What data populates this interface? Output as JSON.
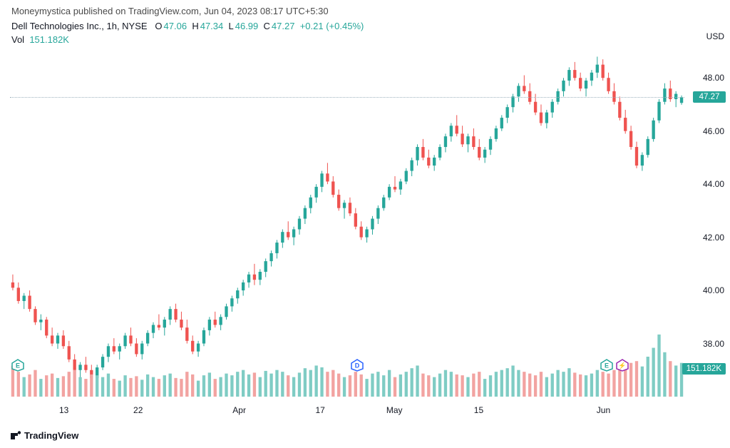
{
  "header": {
    "published_by": "Moneymystica",
    "published_text": "published on",
    "site": "TradingView.com",
    "timestamp": "Jun 04, 2023 08:17 UTC+5:30"
  },
  "ticker": {
    "name": "Dell Technologies Inc.",
    "interval": "1h",
    "exchange": "NYSE",
    "O_label": "O",
    "O": "47.06",
    "H_label": "H",
    "H": "47.34",
    "L_label": "L",
    "L": "46.99",
    "C_label": "C",
    "C": "47.27",
    "change": "+0.21",
    "pct": "(+0.45%)"
  },
  "volume": {
    "label": "Vol",
    "value": "151.182K"
  },
  "currency": "USD",
  "y_axis": {
    "min": 36,
    "max": 49,
    "ticks": [
      38,
      40,
      42,
      44,
      46,
      48
    ]
  },
  "price_last": 47.27,
  "price_tag": "47.27",
  "vol_tag": "151.182K",
  "x_ticks": [
    {
      "pos": 0.08,
      "label": "13"
    },
    {
      "pos": 0.19,
      "label": "22"
    },
    {
      "pos": 0.34,
      "label": "Apr"
    },
    {
      "pos": 0.46,
      "label": "17"
    },
    {
      "pos": 0.57,
      "label": "May"
    },
    {
      "pos": 0.695,
      "label": "15"
    },
    {
      "pos": 0.88,
      "label": "Jun"
    }
  ],
  "markers": [
    {
      "pos": 0.012,
      "y": 0.91,
      "letter": "E",
      "fill": "#ffffff",
      "stroke": "#26a69a",
      "text_color": "#26a69a"
    },
    {
      "pos": 0.515,
      "y": 0.91,
      "letter": "D",
      "fill": "#ffffff",
      "stroke": "#2962ff",
      "text_color": "#2962ff"
    },
    {
      "pos": 0.885,
      "y": 0.91,
      "letter": "E",
      "fill": "#ffffff",
      "stroke": "#26a69a",
      "text_color": "#26a69a"
    },
    {
      "pos": 0.908,
      "y": 0.91,
      "letter": "⚡",
      "fill": "#ffffff",
      "stroke": "#9c27b0",
      "text_color": "#9c27b0"
    }
  ],
  "colors": {
    "up": "#26a69a",
    "down": "#ef5350",
    "vol_up": "#7fccc4",
    "vol_down": "#f2a3a1",
    "text": "#131722",
    "muted": "#4a4a4a",
    "line": "#9db2bd",
    "bg": "#ffffff"
  },
  "footer_brand": "TradingView",
  "candles": [
    {
      "o": 40.3,
      "h": 40.6,
      "l": 40.0,
      "c": 40.1,
      "v": 0.35
    },
    {
      "o": 40.1,
      "h": 40.3,
      "l": 39.5,
      "c": 39.6,
      "v": 0.28
    },
    {
      "o": 39.6,
      "h": 39.9,
      "l": 39.3,
      "c": 39.8,
      "v": 0.22
    },
    {
      "o": 39.8,
      "h": 40.0,
      "l": 39.2,
      "c": 39.3,
      "v": 0.25
    },
    {
      "o": 39.3,
      "h": 39.4,
      "l": 38.7,
      "c": 38.8,
      "v": 0.3
    },
    {
      "o": 38.8,
      "h": 39.1,
      "l": 38.5,
      "c": 38.9,
      "v": 0.2
    },
    {
      "o": 38.9,
      "h": 39.0,
      "l": 38.2,
      "c": 38.3,
      "v": 0.24
    },
    {
      "o": 38.3,
      "h": 38.6,
      "l": 37.9,
      "c": 38.0,
      "v": 0.26
    },
    {
      "o": 38.0,
      "h": 38.4,
      "l": 37.8,
      "c": 38.3,
      "v": 0.21
    },
    {
      "o": 38.3,
      "h": 38.5,
      "l": 37.8,
      "c": 37.9,
      "v": 0.23
    },
    {
      "o": 37.9,
      "h": 38.1,
      "l": 37.3,
      "c": 37.4,
      "v": 0.28
    },
    {
      "o": 37.4,
      "h": 37.6,
      "l": 36.9,
      "c": 37.0,
      "v": 0.3
    },
    {
      "o": 37.0,
      "h": 37.3,
      "l": 36.7,
      "c": 37.2,
      "v": 0.22
    },
    {
      "o": 37.2,
      "h": 37.5,
      "l": 36.9,
      "c": 37.0,
      "v": 0.2
    },
    {
      "o": 37.0,
      "h": 37.2,
      "l": 36.6,
      "c": 36.7,
      "v": 0.25
    },
    {
      "o": 36.7,
      "h": 37.2,
      "l": 36.5,
      "c": 37.1,
      "v": 0.24
    },
    {
      "o": 37.1,
      "h": 37.6,
      "l": 37.0,
      "c": 37.5,
      "v": 0.22
    },
    {
      "o": 37.5,
      "h": 38.0,
      "l": 37.3,
      "c": 37.9,
      "v": 0.26
    },
    {
      "o": 37.9,
      "h": 38.2,
      "l": 37.6,
      "c": 37.7,
      "v": 0.2
    },
    {
      "o": 37.7,
      "h": 38.0,
      "l": 37.4,
      "c": 37.9,
      "v": 0.18
    },
    {
      "o": 37.9,
      "h": 38.4,
      "l": 37.8,
      "c": 38.3,
      "v": 0.24
    },
    {
      "o": 38.3,
      "h": 38.6,
      "l": 37.9,
      "c": 38.0,
      "v": 0.21
    },
    {
      "o": 38.0,
      "h": 38.2,
      "l": 37.5,
      "c": 37.6,
      "v": 0.23
    },
    {
      "o": 37.6,
      "h": 38.1,
      "l": 37.4,
      "c": 38.0,
      "v": 0.19
    },
    {
      "o": 38.0,
      "h": 38.5,
      "l": 37.9,
      "c": 38.4,
      "v": 0.25
    },
    {
      "o": 38.4,
      "h": 38.8,
      "l": 38.2,
      "c": 38.7,
      "v": 0.22
    },
    {
      "o": 38.7,
      "h": 39.1,
      "l": 38.5,
      "c": 38.6,
      "v": 0.2
    },
    {
      "o": 38.6,
      "h": 39.0,
      "l": 38.3,
      "c": 38.9,
      "v": 0.24
    },
    {
      "o": 38.9,
      "h": 39.4,
      "l": 38.7,
      "c": 39.3,
      "v": 0.26
    },
    {
      "o": 39.3,
      "h": 39.5,
      "l": 38.8,
      "c": 38.9,
      "v": 0.21
    },
    {
      "o": 38.9,
      "h": 39.2,
      "l": 38.5,
      "c": 38.6,
      "v": 0.2
    },
    {
      "o": 38.6,
      "h": 38.9,
      "l": 38.0,
      "c": 38.1,
      "v": 0.28
    },
    {
      "o": 38.1,
      "h": 38.3,
      "l": 37.6,
      "c": 37.7,
      "v": 0.25
    },
    {
      "o": 37.7,
      "h": 38.1,
      "l": 37.5,
      "c": 38.0,
      "v": 0.18
    },
    {
      "o": 38.0,
      "h": 38.6,
      "l": 37.9,
      "c": 38.5,
      "v": 0.24
    },
    {
      "o": 38.5,
      "h": 39.0,
      "l": 38.3,
      "c": 38.9,
      "v": 0.27
    },
    {
      "o": 38.9,
      "h": 39.2,
      "l": 38.6,
      "c": 38.7,
      "v": 0.2
    },
    {
      "o": 38.7,
      "h": 39.1,
      "l": 38.5,
      "c": 39.0,
      "v": 0.22
    },
    {
      "o": 39.0,
      "h": 39.5,
      "l": 38.9,
      "c": 39.4,
      "v": 0.26
    },
    {
      "o": 39.4,
      "h": 39.8,
      "l": 39.2,
      "c": 39.7,
      "v": 0.24
    },
    {
      "o": 39.7,
      "h": 40.1,
      "l": 39.5,
      "c": 40.0,
      "v": 0.28
    },
    {
      "o": 40.0,
      "h": 40.4,
      "l": 39.8,
      "c": 40.3,
      "v": 0.3
    },
    {
      "o": 40.3,
      "h": 40.7,
      "l": 40.1,
      "c": 40.6,
      "v": 0.25
    },
    {
      "o": 40.6,
      "h": 41.0,
      "l": 40.2,
      "c": 40.4,
      "v": 0.27
    },
    {
      "o": 40.4,
      "h": 40.8,
      "l": 40.2,
      "c": 40.7,
      "v": 0.22
    },
    {
      "o": 40.7,
      "h": 41.2,
      "l": 40.5,
      "c": 41.1,
      "v": 0.29
    },
    {
      "o": 41.1,
      "h": 41.5,
      "l": 40.9,
      "c": 41.4,
      "v": 0.26
    },
    {
      "o": 41.4,
      "h": 41.9,
      "l": 41.2,
      "c": 41.8,
      "v": 0.3
    },
    {
      "o": 41.8,
      "h": 42.3,
      "l": 41.6,
      "c": 42.2,
      "v": 0.28
    },
    {
      "o": 42.2,
      "h": 42.6,
      "l": 41.9,
      "c": 42.0,
      "v": 0.24
    },
    {
      "o": 42.0,
      "h": 42.4,
      "l": 41.7,
      "c": 42.3,
      "v": 0.22
    },
    {
      "o": 42.3,
      "h": 42.8,
      "l": 42.1,
      "c": 42.7,
      "v": 0.27
    },
    {
      "o": 42.7,
      "h": 43.2,
      "l": 42.5,
      "c": 43.1,
      "v": 0.32
    },
    {
      "o": 43.1,
      "h": 43.6,
      "l": 42.9,
      "c": 43.5,
      "v": 0.3
    },
    {
      "o": 43.5,
      "h": 44.0,
      "l": 43.3,
      "c": 43.9,
      "v": 0.35
    },
    {
      "o": 43.9,
      "h": 44.5,
      "l": 43.7,
      "c": 44.4,
      "v": 0.33
    },
    {
      "o": 44.4,
      "h": 44.8,
      "l": 44.0,
      "c": 44.1,
      "v": 0.28
    },
    {
      "o": 44.1,
      "h": 44.3,
      "l": 43.5,
      "c": 43.6,
      "v": 0.3
    },
    {
      "o": 43.6,
      "h": 43.8,
      "l": 43.0,
      "c": 43.1,
      "v": 0.26
    },
    {
      "o": 43.1,
      "h": 43.4,
      "l": 42.7,
      "c": 43.3,
      "v": 0.22
    },
    {
      "o": 43.3,
      "h": 43.5,
      "l": 42.8,
      "c": 42.9,
      "v": 0.24
    },
    {
      "o": 42.9,
      "h": 43.1,
      "l": 42.3,
      "c": 42.4,
      "v": 0.28
    },
    {
      "o": 42.4,
      "h": 42.6,
      "l": 41.9,
      "c": 42.0,
      "v": 0.25
    },
    {
      "o": 42.0,
      "h": 42.4,
      "l": 41.8,
      "c": 42.3,
      "v": 0.2
    },
    {
      "o": 42.3,
      "h": 42.8,
      "l": 42.1,
      "c": 42.7,
      "v": 0.26
    },
    {
      "o": 42.7,
      "h": 43.2,
      "l": 42.5,
      "c": 43.1,
      "v": 0.28
    },
    {
      "o": 43.1,
      "h": 43.6,
      "l": 43.0,
      "c": 43.5,
      "v": 0.24
    },
    {
      "o": 43.5,
      "h": 44.0,
      "l": 43.4,
      "c": 43.9,
      "v": 0.3
    },
    {
      "o": 43.9,
      "h": 44.3,
      "l": 43.7,
      "c": 43.8,
      "v": 0.22
    },
    {
      "o": 43.8,
      "h": 44.2,
      "l": 43.6,
      "c": 44.1,
      "v": 0.25
    },
    {
      "o": 44.1,
      "h": 44.6,
      "l": 44.0,
      "c": 44.5,
      "v": 0.28
    },
    {
      "o": 44.5,
      "h": 45.0,
      "l": 44.3,
      "c": 44.9,
      "v": 0.32
    },
    {
      "o": 44.9,
      "h": 45.5,
      "l": 44.7,
      "c": 45.4,
      "v": 0.35
    },
    {
      "o": 45.4,
      "h": 45.7,
      "l": 44.9,
      "c": 45.0,
      "v": 0.26
    },
    {
      "o": 45.0,
      "h": 45.3,
      "l": 44.6,
      "c": 44.7,
      "v": 0.24
    },
    {
      "o": 44.7,
      "h": 45.1,
      "l": 44.5,
      "c": 45.0,
      "v": 0.22
    },
    {
      "o": 45.0,
      "h": 45.5,
      "l": 44.9,
      "c": 45.4,
      "v": 0.26
    },
    {
      "o": 45.4,
      "h": 45.9,
      "l": 45.2,
      "c": 45.8,
      "v": 0.3
    },
    {
      "o": 45.8,
      "h": 46.3,
      "l": 45.6,
      "c": 46.2,
      "v": 0.28
    },
    {
      "o": 46.2,
      "h": 46.6,
      "l": 45.8,
      "c": 45.9,
      "v": 0.25
    },
    {
      "o": 45.9,
      "h": 46.2,
      "l": 45.4,
      "c": 45.5,
      "v": 0.24
    },
    {
      "o": 45.5,
      "h": 45.9,
      "l": 45.2,
      "c": 45.8,
      "v": 0.22
    },
    {
      "o": 45.8,
      "h": 46.1,
      "l": 45.3,
      "c": 45.4,
      "v": 0.26
    },
    {
      "o": 45.4,
      "h": 45.7,
      "l": 44.9,
      "c": 45.0,
      "v": 0.28
    },
    {
      "o": 45.0,
      "h": 45.4,
      "l": 44.8,
      "c": 45.3,
      "v": 0.2
    },
    {
      "o": 45.3,
      "h": 45.8,
      "l": 45.1,
      "c": 45.7,
      "v": 0.24
    },
    {
      "o": 45.7,
      "h": 46.2,
      "l": 45.6,
      "c": 46.1,
      "v": 0.28
    },
    {
      "o": 46.1,
      "h": 46.6,
      "l": 46.0,
      "c": 46.5,
      "v": 0.3
    },
    {
      "o": 46.5,
      "h": 47.0,
      "l": 46.3,
      "c": 46.9,
      "v": 0.32
    },
    {
      "o": 46.9,
      "h": 47.4,
      "l": 46.7,
      "c": 47.3,
      "v": 0.35
    },
    {
      "o": 47.3,
      "h": 47.8,
      "l": 47.1,
      "c": 47.7,
      "v": 0.3
    },
    {
      "o": 47.7,
      "h": 48.1,
      "l": 47.4,
      "c": 47.5,
      "v": 0.28
    },
    {
      "o": 47.5,
      "h": 47.8,
      "l": 47.0,
      "c": 47.1,
      "v": 0.26
    },
    {
      "o": 47.1,
      "h": 47.4,
      "l": 46.6,
      "c": 46.7,
      "v": 0.24
    },
    {
      "o": 46.7,
      "h": 47.0,
      "l": 46.2,
      "c": 46.3,
      "v": 0.28
    },
    {
      "o": 46.3,
      "h": 46.8,
      "l": 46.1,
      "c": 46.7,
      "v": 0.22
    },
    {
      "o": 46.7,
      "h": 47.2,
      "l": 46.5,
      "c": 47.1,
      "v": 0.26
    },
    {
      "o": 47.1,
      "h": 47.6,
      "l": 47.0,
      "c": 47.5,
      "v": 0.3
    },
    {
      "o": 47.5,
      "h": 48.0,
      "l": 47.3,
      "c": 47.9,
      "v": 0.28
    },
    {
      "o": 47.9,
      "h": 48.4,
      "l": 47.7,
      "c": 48.3,
      "v": 0.32
    },
    {
      "o": 48.3,
      "h": 48.6,
      "l": 47.9,
      "c": 48.0,
      "v": 0.27
    },
    {
      "o": 48.0,
      "h": 48.2,
      "l": 47.5,
      "c": 47.6,
      "v": 0.25
    },
    {
      "o": 47.6,
      "h": 48.0,
      "l": 47.3,
      "c": 47.9,
      "v": 0.24
    },
    {
      "o": 47.9,
      "h": 48.3,
      "l": 47.7,
      "c": 48.2,
      "v": 0.26
    },
    {
      "o": 48.2,
      "h": 48.8,
      "l": 48.0,
      "c": 48.5,
      "v": 0.3
    },
    {
      "o": 48.5,
      "h": 48.7,
      "l": 47.9,
      "c": 48.0,
      "v": 0.28
    },
    {
      "o": 48.0,
      "h": 48.2,
      "l": 47.4,
      "c": 47.5,
      "v": 0.26
    },
    {
      "o": 47.5,
      "h": 47.8,
      "l": 47.0,
      "c": 47.1,
      "v": 0.3
    },
    {
      "o": 47.1,
      "h": 47.3,
      "l": 46.4,
      "c": 46.5,
      "v": 0.35
    },
    {
      "o": 46.5,
      "h": 46.8,
      "l": 45.9,
      "c": 46.0,
      "v": 0.32
    },
    {
      "o": 46.0,
      "h": 46.2,
      "l": 45.3,
      "c": 45.4,
      "v": 0.38
    },
    {
      "o": 45.4,
      "h": 45.6,
      "l": 44.6,
      "c": 44.7,
      "v": 0.4
    },
    {
      "o": 44.7,
      "h": 45.2,
      "l": 44.5,
      "c": 45.1,
      "v": 0.34
    },
    {
      "o": 45.1,
      "h": 45.8,
      "l": 45.0,
      "c": 45.7,
      "v": 0.45
    },
    {
      "o": 45.7,
      "h": 46.5,
      "l": 45.6,
      "c": 46.4,
      "v": 0.55
    },
    {
      "o": 46.4,
      "h": 47.2,
      "l": 46.3,
      "c": 47.1,
      "v": 0.7
    },
    {
      "o": 47.1,
      "h": 47.8,
      "l": 47.0,
      "c": 47.6,
      "v": 0.5
    },
    {
      "o": 47.6,
      "h": 47.9,
      "l": 47.1,
      "c": 47.2,
      "v": 0.4
    },
    {
      "o": 47.2,
      "h": 47.5,
      "l": 46.9,
      "c": 47.4,
      "v": 0.35
    },
    {
      "o": 47.06,
      "h": 47.34,
      "l": 46.99,
      "c": 47.27,
      "v": 0.38
    }
  ]
}
